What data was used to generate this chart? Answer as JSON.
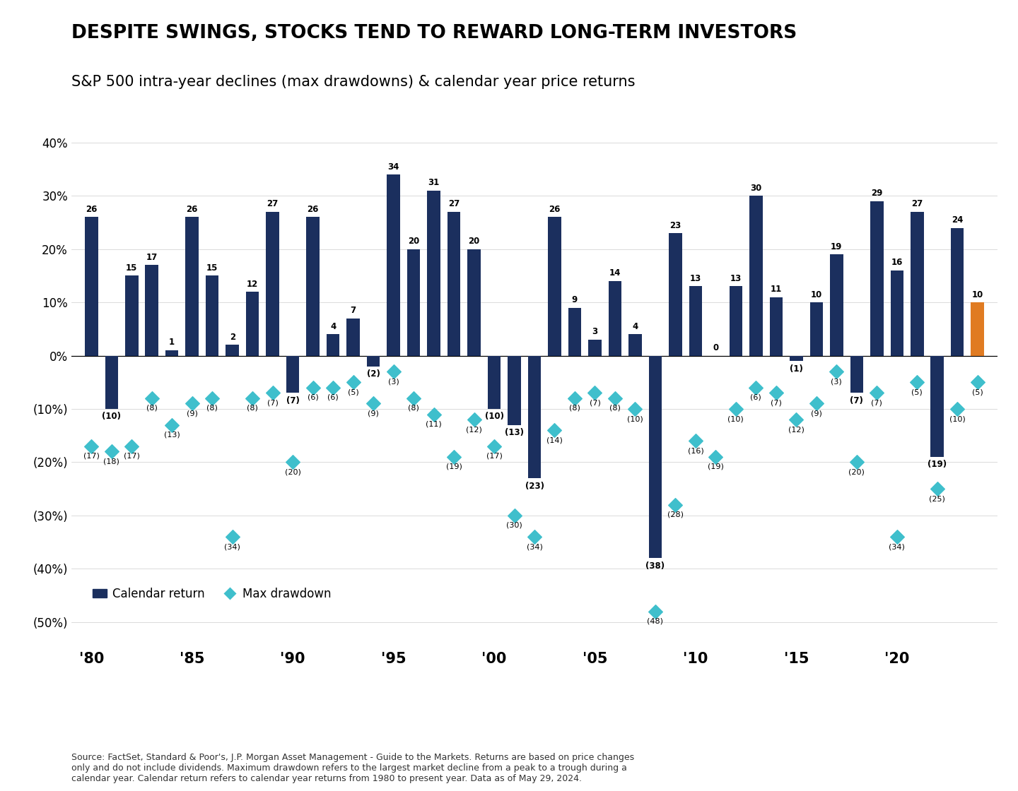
{
  "years": [
    1980,
    1981,
    1982,
    1983,
    1984,
    1985,
    1986,
    1987,
    1988,
    1989,
    1990,
    1991,
    1992,
    1993,
    1994,
    1995,
    1996,
    1997,
    1998,
    1999,
    2000,
    2001,
    2002,
    2003,
    2004,
    2005,
    2006,
    2007,
    2008,
    2009,
    2010,
    2011,
    2012,
    2013,
    2014,
    2015,
    2016,
    2017,
    2018,
    2019,
    2020,
    2021,
    2022,
    2023,
    2024
  ],
  "cal_returns": [
    26,
    -10,
    15,
    17,
    1,
    26,
    15,
    2,
    12,
    27,
    -7,
    26,
    4,
    7,
    -2,
    34,
    20,
    31,
    27,
    20,
    -10,
    -13,
    -23,
    26,
    9,
    3,
    14,
    4,
    -38,
    23,
    13,
    0,
    13,
    30,
    11,
    -1,
    10,
    19,
    -7,
    29,
    16,
    27,
    -19,
    24,
    10
  ],
  "max_drawdowns": [
    -17,
    -18,
    -17,
    -8,
    -13,
    -9,
    -8,
    -34,
    -8,
    -7,
    -20,
    -6,
    -6,
    -5,
    -9,
    -3,
    -8,
    -11,
    -19,
    -12,
    -17,
    -30,
    -34,
    -14,
    -8,
    -7,
    -8,
    -10,
    -48,
    -28,
    -16,
    -19,
    -10,
    -6,
    -7,
    -12,
    -9,
    -3,
    -20,
    -7,
    -34,
    -5,
    -25,
    -10,
    -5
  ],
  "bar_color_2024": "#e07b22",
  "default_bar_color": "#1b2f5e",
  "dot_color": "#3fbfcc",
  "title_line1": "DESPITE SWINGS, STOCKS TEND TO REWARD LONG-TERM INVESTORS",
  "subtitle": "S&P 500 intra-year declines (max drawdowns) & calendar year price returns",
  "source_text": "Source: FactSet, Standard & Poor's, J.P. Morgan Asset Management - Guide to the Markets. Returns are based on price changes\nonly and do not include dividends. Maximum drawdown refers to the largest market decline from a peak to a trough during a\ncalendar year. Calendar return refers to calendar year returns from 1980 to present year. Data as of May 29, 2024.",
  "ylim_bottom": -55,
  "ylim_top": 43,
  "yticks": [
    40,
    30,
    20,
    10,
    0,
    -10,
    -20,
    -30,
    -40,
    -50
  ],
  "ytick_labels": [
    "40%",
    "30%",
    "20%",
    "10%",
    "0%",
    "(10%)",
    "(20%)",
    "(30%)",
    "(40%)",
    "(50%)"
  ],
  "xtick_years": [
    1980,
    1985,
    1990,
    1995,
    2000,
    2005,
    2010,
    2015,
    2020
  ],
  "xtick_labels": [
    "'80",
    "'85",
    "'90",
    "'95",
    "'00",
    "'05",
    "'10",
    "'15",
    "'20"
  ],
  "xlim_left": 1979.0,
  "xlim_right": 2025.0,
  "bar_width": 0.65,
  "ann_bar_fontsize": 8.5,
  "ann_dot_fontsize": 8.0,
  "title_fontsize": 19,
  "subtitle_fontsize": 15,
  "source_fontsize": 9,
  "ytick_fontsize": 12,
  "xtick_fontsize": 15,
  "legend_fontsize": 12
}
